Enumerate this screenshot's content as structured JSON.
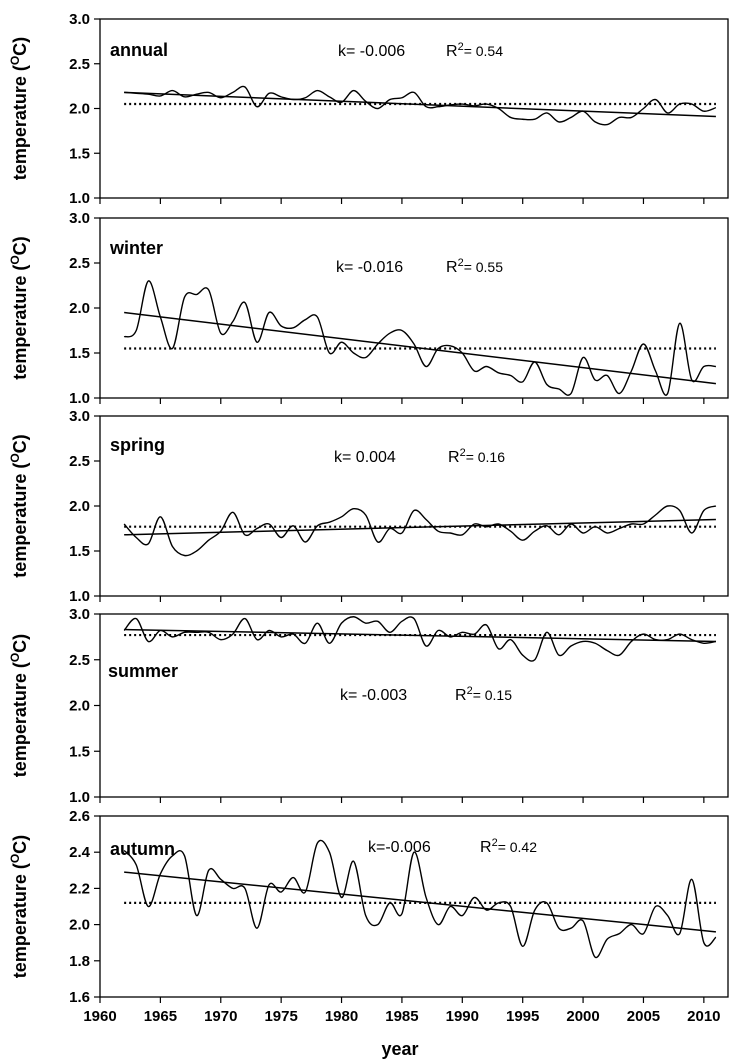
{
  "chart_data": {
    "type": "line",
    "xlabel": "year",
    "x_ticks": [
      "1960",
      "1965",
      "1970",
      "1975",
      "1980",
      "1985",
      "1990",
      "1995",
      "2000",
      "2005",
      "2010"
    ],
    "xlim": [
      1960,
      2012
    ],
    "ylabel_text": "temperature (",
    "ylabel_sup": "O",
    "ylabel_end": "C)",
    "panels": [
      {
        "name": "annual",
        "k_text": "k= -0.006",
        "r2_prefix": "R",
        "r2_sup": "2",
        "r2_value": "= 0.54",
        "ylim": [
          1.0,
          3.0
        ],
        "yticks": [
          "1.0",
          "1.5",
          "2.0",
          "2.5",
          "3.0"
        ],
        "mean": 2.05,
        "trend": [
          [
            1962,
            2.18
          ],
          [
            2011,
            1.91
          ]
        ],
        "x": [
          1962,
          1963,
          1964,
          1965,
          1966,
          1967,
          1968,
          1969,
          1970,
          1971,
          1972,
          1973,
          1974,
          1975,
          1976,
          1977,
          1978,
          1979,
          1980,
          1981,
          1982,
          1983,
          1984,
          1985,
          1986,
          1987,
          1988,
          1989,
          1990,
          1991,
          1992,
          1993,
          1994,
          1995,
          1996,
          1997,
          1998,
          1999,
          2000,
          2001,
          2002,
          2003,
          2004,
          2005,
          2006,
          2007,
          2008,
          2009,
          2010,
          2011
        ],
        "values": [
          2.18,
          2.17,
          2.16,
          2.14,
          2.2,
          2.13,
          2.16,
          2.18,
          2.12,
          2.18,
          2.24,
          2.02,
          2.17,
          2.13,
          2.1,
          2.12,
          2.2,
          2.13,
          2.07,
          2.2,
          2.08,
          2.0,
          2.1,
          2.12,
          2.18,
          2.02,
          2.02,
          2.04,
          2.05,
          2.03,
          2.05,
          2.0,
          1.9,
          1.88,
          1.88,
          1.95,
          1.85,
          1.9,
          1.97,
          1.85,
          1.82,
          1.9,
          1.9,
          2.0,
          2.1,
          1.95,
          2.05,
          2.05,
          1.97,
          2.01
        ]
      },
      {
        "name": "winter",
        "k_text": "k= -0.016",
        "r2_prefix": "R",
        "r2_sup": "2",
        "r2_value": "= 0.55",
        "ylim": [
          1.0,
          3.0
        ],
        "yticks": [
          "1.0",
          "1.5",
          "2.0",
          "2.5",
          "3.0"
        ],
        "mean": 1.55,
        "trend": [
          [
            1962,
            1.95
          ],
          [
            2011,
            1.16
          ]
        ],
        "x": [
          1962,
          1963,
          1964,
          1965,
          1966,
          1967,
          1968,
          1969,
          1970,
          1971,
          1972,
          1973,
          1974,
          1975,
          1976,
          1977,
          1978,
          1979,
          1980,
          1981,
          1982,
          1983,
          1984,
          1985,
          1986,
          1987,
          1988,
          1989,
          1990,
          1991,
          1992,
          1993,
          1994,
          1995,
          1996,
          1997,
          1998,
          1999,
          2000,
          2001,
          2002,
          2003,
          2004,
          2005,
          2006,
          2007,
          2008,
          2009,
          2010,
          2011
        ],
        "values": [
          1.68,
          1.75,
          2.3,
          1.9,
          1.55,
          2.12,
          2.15,
          2.2,
          1.72,
          1.85,
          2.06,
          1.62,
          1.95,
          1.8,
          1.78,
          1.87,
          1.9,
          1.5,
          1.62,
          1.5,
          1.45,
          1.6,
          1.72,
          1.75,
          1.6,
          1.35,
          1.55,
          1.58,
          1.5,
          1.3,
          1.35,
          1.28,
          1.25,
          1.18,
          1.4,
          1.15,
          1.1,
          1.05,
          1.45,
          1.2,
          1.25,
          1.05,
          1.3,
          1.6,
          1.3,
          1.05,
          1.83,
          1.2,
          1.35,
          1.35
        ]
      },
      {
        "name": "spring",
        "k_text": "k=  0.004",
        "r2_prefix": "R",
        "r2_sup": "2",
        "r2_value": "= 0.16",
        "ylim": [
          1.0,
          3.0
        ],
        "yticks": [
          "1.0",
          "1.5",
          "2.0",
          "2.5",
          "3.0"
        ],
        "mean": 1.77,
        "trend": [
          [
            1962,
            1.68
          ],
          [
            2011,
            1.85
          ]
        ],
        "x": [
          1962,
          1963,
          1964,
          1965,
          1966,
          1967,
          1968,
          1969,
          1970,
          1971,
          1972,
          1973,
          1974,
          1975,
          1976,
          1977,
          1978,
          1979,
          1980,
          1981,
          1982,
          1983,
          1984,
          1985,
          1986,
          1987,
          1988,
          1989,
          1990,
          1991,
          1992,
          1993,
          1994,
          1995,
          1996,
          1997,
          1998,
          1999,
          2000,
          2001,
          2002,
          2003,
          2004,
          2005,
          2006,
          2007,
          2008,
          2009,
          2010,
          2011
        ],
        "values": [
          1.8,
          1.65,
          1.58,
          1.88,
          1.55,
          1.45,
          1.5,
          1.62,
          1.72,
          1.93,
          1.68,
          1.75,
          1.8,
          1.65,
          1.78,
          1.6,
          1.78,
          1.82,
          1.88,
          1.97,
          1.9,
          1.6,
          1.75,
          1.7,
          1.95,
          1.85,
          1.72,
          1.7,
          1.68,
          1.8,
          1.77,
          1.8,
          1.72,
          1.62,
          1.72,
          1.78,
          1.68,
          1.8,
          1.7,
          1.77,
          1.7,
          1.75,
          1.8,
          1.8,
          1.9,
          2.0,
          1.95,
          1.7,
          1.95,
          2.0
        ]
      },
      {
        "name": "summer",
        "k_text": "k= -0.003",
        "r2_prefix": "R",
        "r2_sup": "2",
        "r2_value": "= 0.15",
        "ylim": [
          1.0,
          3.0
        ],
        "yticks": [
          "1.0",
          "1.5",
          "2.0",
          "2.5",
          "3.0"
        ],
        "mean": 2.77,
        "trend": [
          [
            1962,
            2.83
          ],
          [
            2011,
            2.7
          ]
        ],
        "x": [
          1962,
          1963,
          1964,
          1965,
          1966,
          1967,
          1968,
          1969,
          1970,
          1971,
          1972,
          1973,
          1974,
          1975,
          1976,
          1977,
          1978,
          1979,
          1980,
          1981,
          1982,
          1983,
          1984,
          1985,
          1986,
          1987,
          1988,
          1989,
          1990,
          1991,
          1992,
          1993,
          1994,
          1995,
          1996,
          1997,
          1998,
          1999,
          2000,
          2001,
          2002,
          2003,
          2004,
          2005,
          2006,
          2007,
          2008,
          2009,
          2010,
          2011
        ],
        "values": [
          2.82,
          2.95,
          2.7,
          2.82,
          2.75,
          2.8,
          2.8,
          2.8,
          2.72,
          2.78,
          2.95,
          2.72,
          2.82,
          2.75,
          2.78,
          2.68,
          2.9,
          2.68,
          2.9,
          2.97,
          2.9,
          2.92,
          2.8,
          2.92,
          2.95,
          2.65,
          2.82,
          2.75,
          2.8,
          2.78,
          2.88,
          2.62,
          2.72,
          2.55,
          2.5,
          2.8,
          2.55,
          2.65,
          2.7,
          2.68,
          2.6,
          2.55,
          2.7,
          2.78,
          2.72,
          2.72,
          2.78,
          2.72,
          2.68,
          2.7
        ]
      },
      {
        "name": "autumn",
        "k_text": "k=-0.006",
        "r2_prefix": "R",
        "r2_sup": "2",
        "r2_value": "= 0.42",
        "ylim": [
          1.6,
          2.6
        ],
        "yticks": [
          "1.6",
          "1.8",
          "2.0",
          "2.2",
          "2.4",
          "2.6"
        ],
        "mean": 2.12,
        "trend": [
          [
            1962,
            2.29
          ],
          [
            2011,
            1.96
          ]
        ],
        "x": [
          1962,
          1963,
          1964,
          1965,
          1966,
          1967,
          1968,
          1969,
          1970,
          1971,
          1972,
          1973,
          1974,
          1975,
          1976,
          1977,
          1978,
          1979,
          1980,
          1981,
          1982,
          1983,
          1984,
          1985,
          1986,
          1987,
          1988,
          1989,
          1990,
          1991,
          1992,
          1993,
          1994,
          1995,
          1996,
          1997,
          1998,
          1999,
          2000,
          2001,
          2002,
          2003,
          2004,
          2005,
          2006,
          2007,
          2008,
          2009,
          2010,
          2011
        ],
        "values": [
          2.41,
          2.33,
          2.1,
          2.28,
          2.38,
          2.38,
          2.05,
          2.3,
          2.25,
          2.2,
          2.2,
          1.98,
          2.22,
          2.18,
          2.26,
          2.18,
          2.45,
          2.4,
          2.15,
          2.35,
          2.05,
          2.0,
          2.12,
          2.06,
          2.4,
          2.15,
          2.0,
          2.1,
          2.05,
          2.15,
          2.08,
          2.12,
          2.1,
          1.88,
          2.08,
          2.12,
          1.98,
          1.98,
          2.02,
          1.82,
          1.92,
          1.95,
          2.0,
          1.95,
          2.1,
          2.05,
          1.95,
          2.25,
          1.9,
          1.93
        ]
      }
    ]
  }
}
